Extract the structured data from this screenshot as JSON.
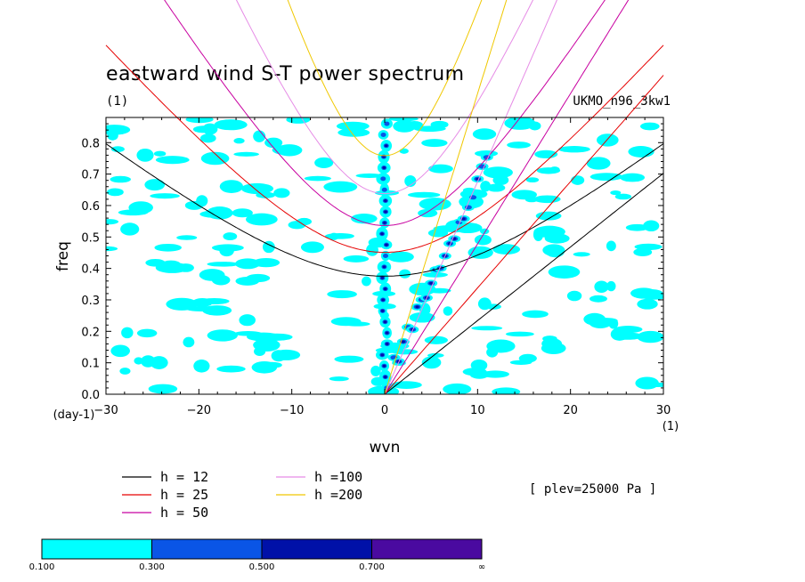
{
  "chart_data": {
    "type": "contour",
    "title": "eastward wind S-T power spectrum",
    "subtitle_left": "(1)",
    "subtitle_right": "UKMO_n96_3kw1",
    "xlabel": "wvn",
    "ylabel": "freq",
    "x_unit": "(1)",
    "y_unit": "(day-1)",
    "xlim": [
      -30,
      30
    ],
    "ylim": [
      0,
      0.88
    ],
    "x_ticks": [
      -30,
      -20,
      -10,
      0,
      10,
      20,
      30
    ],
    "y_ticks": [
      0.0,
      0.1,
      0.2,
      0.3,
      0.4,
      0.5,
      0.6,
      0.7,
      0.8
    ],
    "annotation": "[ plev=25000 Pa ]",
    "colorbar": {
      "levels": [
        "0.100",
        "0.300",
        "0.500",
        "0.700",
        "∞"
      ],
      "colors": [
        "#00ffff",
        "#0a55e6",
        "#0011a8",
        "#4a0aa0"
      ]
    },
    "dispersion_curves": [
      {
        "name": "h = 12",
        "color": "#000000"
      },
      {
        "name": "h = 25",
        "color": "#e60000"
      },
      {
        "name": "h = 50",
        "color": "#c800a0"
      },
      {
        "name": "h =100",
        "color": "#e68ce6"
      },
      {
        "name": "h =200",
        "color": "#f0c800"
      }
    ]
  }
}
